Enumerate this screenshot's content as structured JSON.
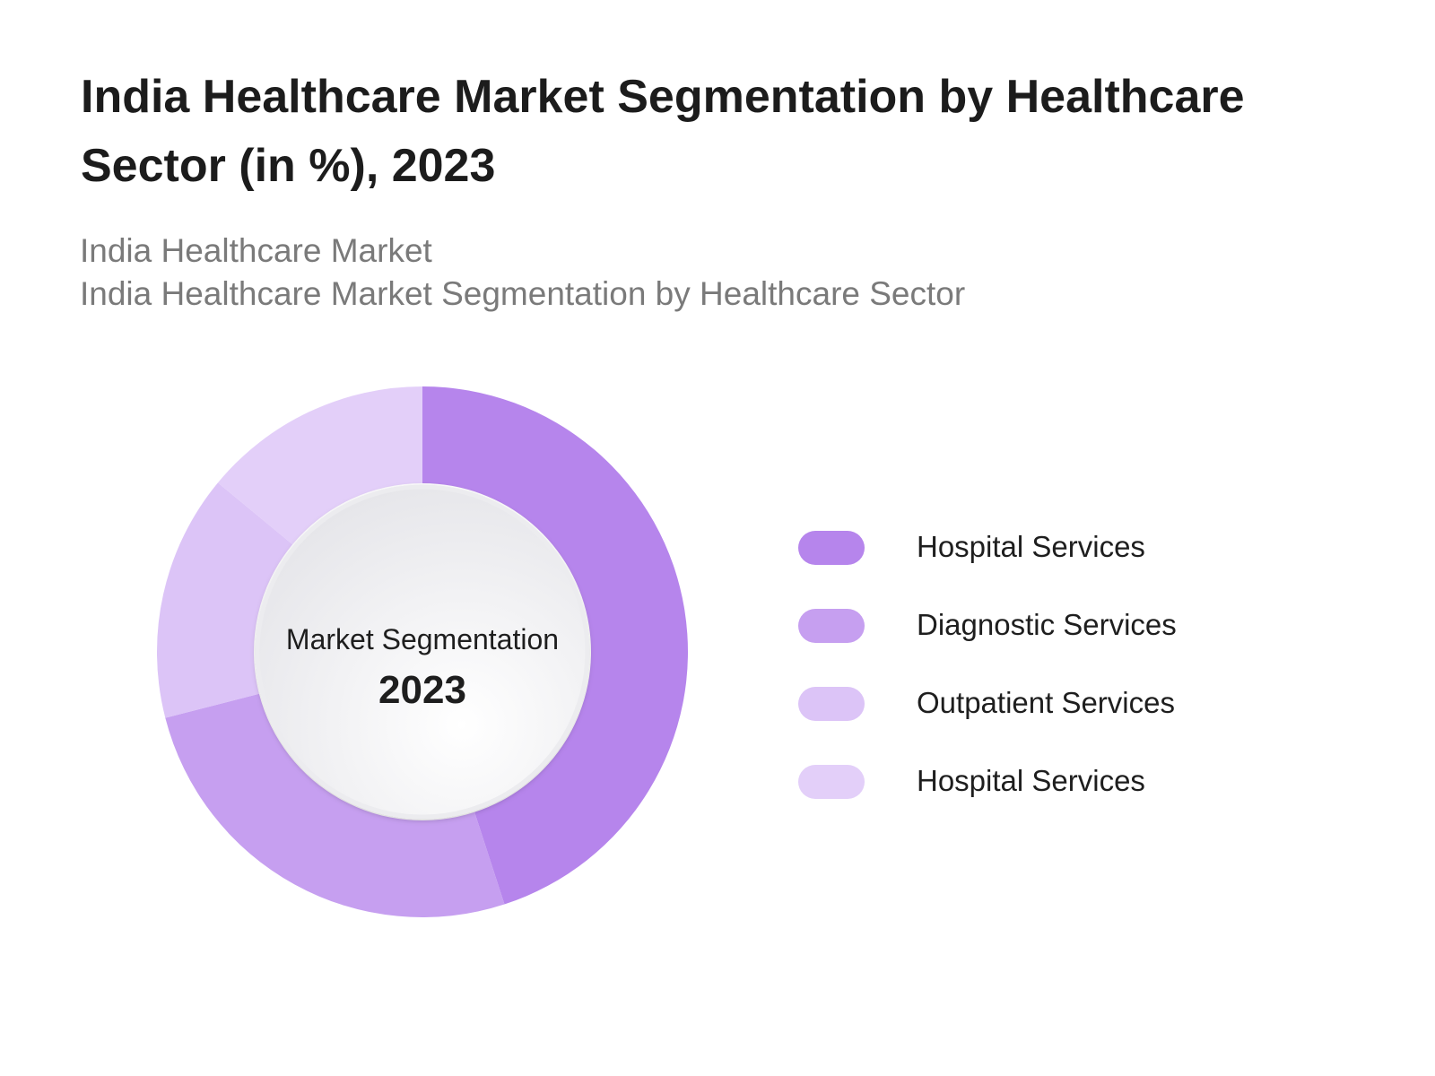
{
  "title": "India Healthcare Market Segmentation by Healthcare Sector (in %), 2023",
  "subtitles": [
    "India Healthcare Market",
    "India Healthcare Market Segmentation by Healthcare Sector"
  ],
  "chart_data": {
    "type": "pie",
    "variant": "donut",
    "center_label": "Market Segmentation",
    "center_value": "2023",
    "legend_placement": "right",
    "slices": [
      {
        "label": "Hospital Services",
        "value": 45,
        "color": "#b685ec"
      },
      {
        "label": "Diagnostic Services",
        "value": 26,
        "color": "#c69ff0"
      },
      {
        "label": "Outpatient Services",
        "value": 15,
        "color": "#dcc4f7"
      },
      {
        "label": "Hospital Services",
        "value": 14,
        "color": "#e3cff9"
      }
    ]
  }
}
